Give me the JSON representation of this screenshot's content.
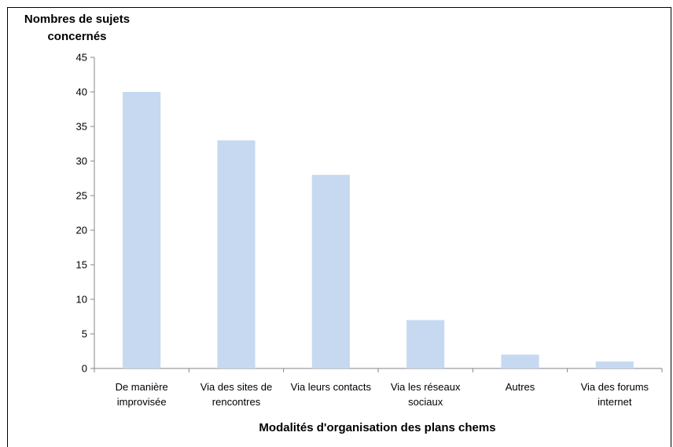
{
  "chart_data": {
    "type": "bar",
    "title": "",
    "ylabel_line1": "Nombres de sujets",
    "ylabel_line2": "concernés",
    "xlabel": "Modalités d'organisation des plans chems",
    "categories": [
      [
        "De manière",
        "improvisée"
      ],
      [
        "Via des sites de",
        "rencontres"
      ],
      [
        "Via leurs contacts"
      ],
      [
        "Via les réseaux",
        "sociaux"
      ],
      [
        "Autres"
      ],
      [
        "Via des forums",
        "internet"
      ]
    ],
    "values": [
      40,
      33,
      28,
      7,
      2,
      1
    ],
    "ylim": [
      0,
      45
    ],
    "yticks": [
      0,
      5,
      10,
      15,
      20,
      25,
      30,
      35,
      40,
      45
    ],
    "bar_color": "#c6d9f1",
    "axis_color": "#868686",
    "grid": false
  }
}
